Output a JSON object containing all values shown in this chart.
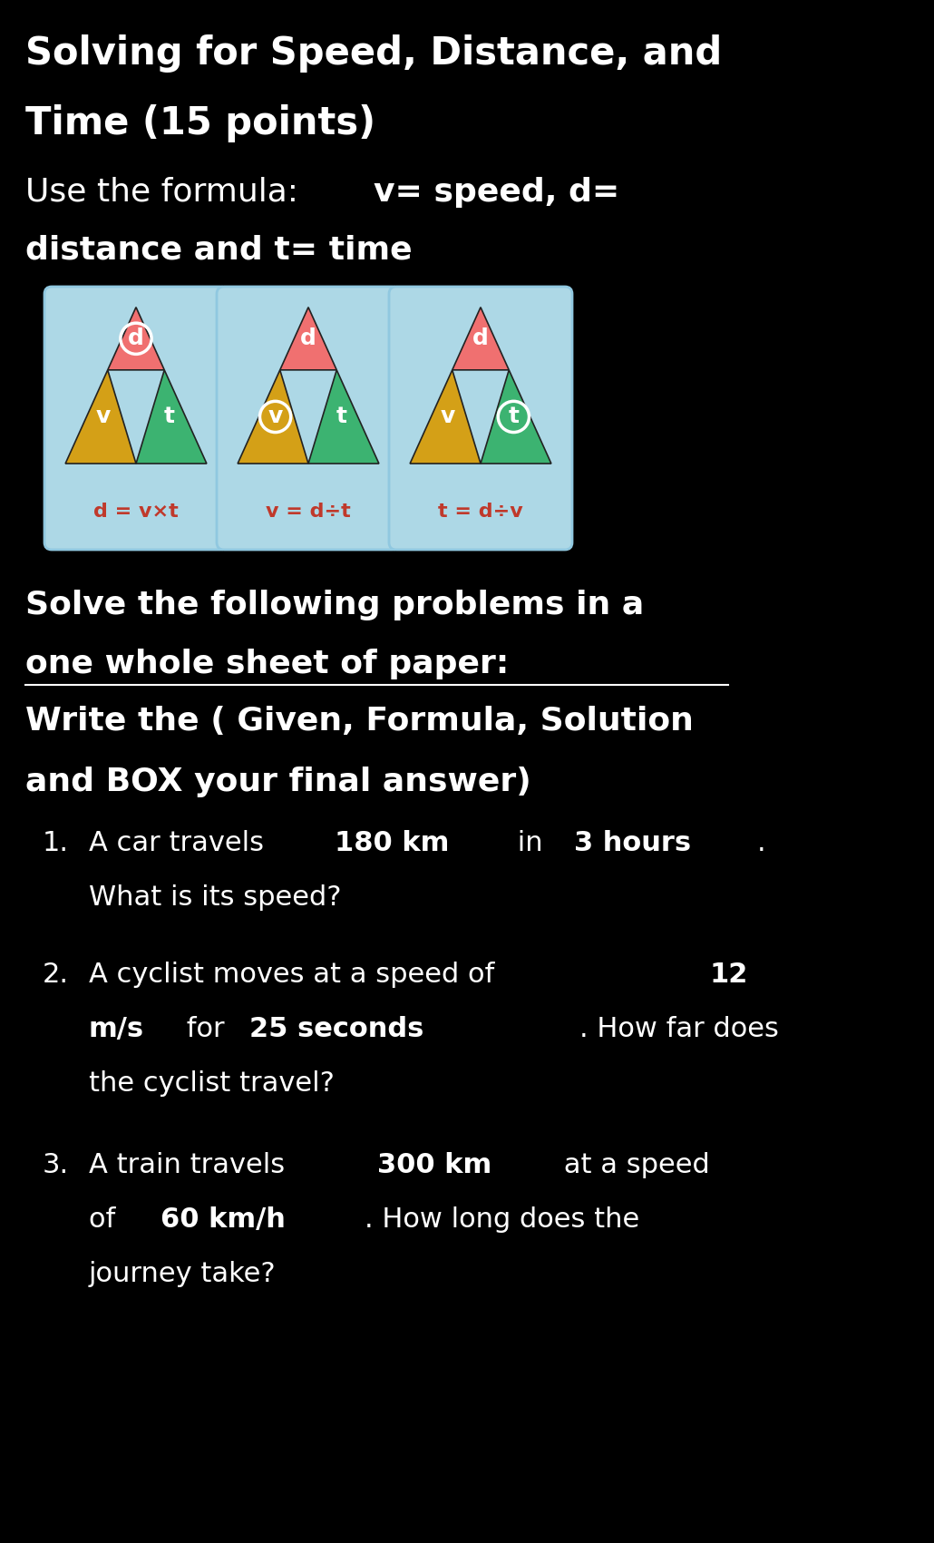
{
  "bg_color": "#000000",
  "text_color": "#ffffff",
  "card_panel_bg": "#f5f0e8",
  "card_inner_bg": "#add8e6",
  "triangle_top_color": "#f07070",
  "triangle_left_color": "#d4a017",
  "triangle_right_color": "#3cb371",
  "formula_color": "#c0392b",
  "title_line1": "Solving for Speed, Distance, and",
  "title_line2": "Time (15 points)",
  "sub_normal": "Use the formula: ",
  "sub_bold": "v= speed, d=",
  "sub_line2": "distance and t= time",
  "formula1": "d = v×t",
  "formula2": "v = d÷t",
  "formula3": "t = d÷v"
}
